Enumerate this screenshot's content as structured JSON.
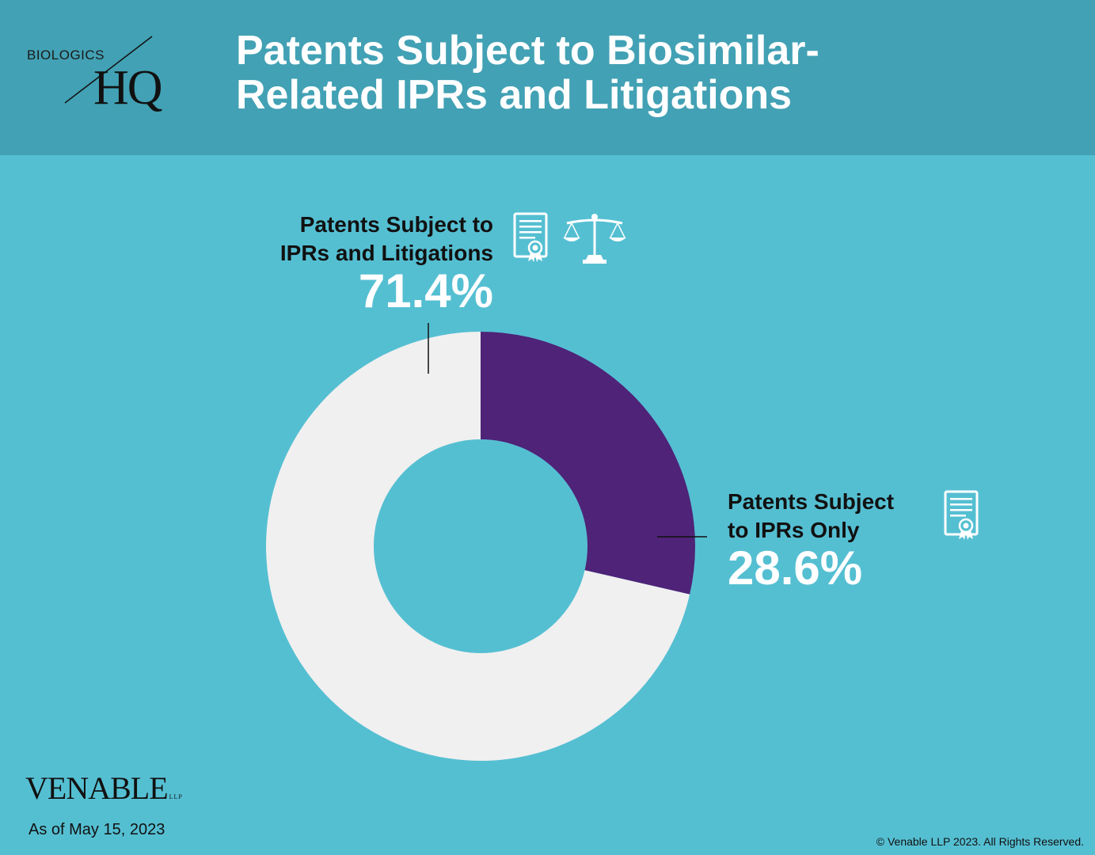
{
  "header": {
    "logo_top": "BIOLOGICS",
    "logo_main": "HQ",
    "title_line1": "Patents Subject to Biosimilar-",
    "title_line2": "Related IPRs and Litigations"
  },
  "colors": {
    "background": "#55bfd2",
    "header": "#42a1b4",
    "slice_iprs_and_litigations": "#f0f0f0",
    "slice_iprs_only": "#4e2378"
  },
  "chart_data": {
    "type": "pie",
    "donut": true,
    "categories": [
      "Patents Subject to IPRs and Litigations",
      "Patents Subject to IPRs Only"
    ],
    "values": [
      71.4,
      28.6
    ],
    "unit": "%",
    "labels": [
      {
        "line1": "Patents Subject to",
        "line2": "IPRs and Litigations",
        "value": "71.4%",
        "icons": [
          "certificate-icon",
          "scales-of-justice-icon"
        ]
      },
      {
        "line1": "Patents Subject",
        "line2": "to IPRs Only",
        "value": "28.6%",
        "icons": [
          "certificate-icon"
        ]
      }
    ]
  },
  "footer": {
    "brand": "VENABLE",
    "brand_suffix": "LLP",
    "as_of": "As of May 15, 2023",
    "copyright": "© Venable LLP 2023. All Rights Reserved."
  }
}
